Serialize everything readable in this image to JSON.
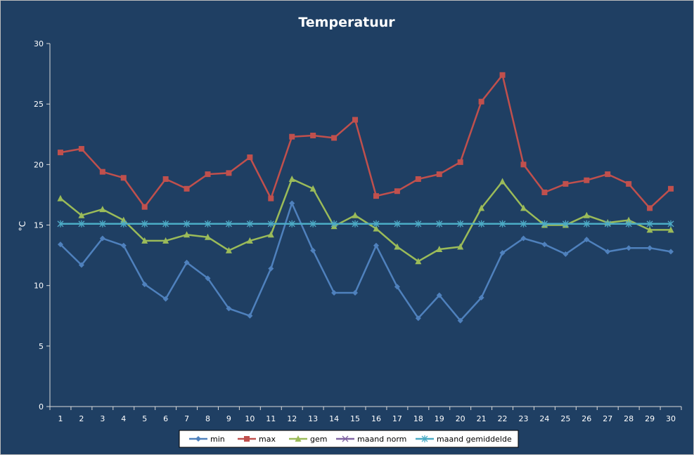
{
  "chart_data": {
    "type": "line",
    "title": "Temperatuur",
    "ylabel": "°C",
    "xlabel": "",
    "ylim": [
      0,
      30
    ],
    "yticks": [
      0,
      5,
      10,
      15,
      20,
      25,
      30
    ],
    "x": [
      1,
      2,
      3,
      4,
      5,
      6,
      7,
      8,
      9,
      10,
      11,
      12,
      13,
      14,
      15,
      16,
      17,
      18,
      19,
      20,
      21,
      22,
      23,
      24,
      25,
      26,
      27,
      28,
      29,
      30
    ],
    "grid": false,
    "legend_position": "bottom",
    "series": [
      {
        "name": "min",
        "color": "#4f81bd",
        "marker": "diamond",
        "values": [
          13.4,
          11.7,
          13.9,
          13.3,
          10.1,
          8.9,
          11.9,
          10.6,
          8.1,
          7.5,
          11.4,
          16.8,
          12.9,
          9.4,
          9.4,
          13.3,
          9.9,
          7.3,
          9.2,
          7.1,
          9.0,
          12.7,
          13.9,
          13.4,
          12.6,
          13.8,
          12.8,
          13.1,
          13.1,
          12.8
        ]
      },
      {
        "name": "max",
        "color": "#c0504d",
        "marker": "square",
        "values": [
          21.0,
          21.3,
          19.4,
          18.9,
          16.5,
          18.8,
          18.0,
          19.2,
          19.3,
          20.6,
          17.2,
          22.3,
          22.4,
          22.2,
          23.7,
          17.4,
          17.8,
          18.8,
          19.2,
          20.2,
          25.2,
          27.4,
          20.0,
          17.7,
          18.4,
          18.7,
          19.2,
          18.4,
          16.4,
          18.0
        ]
      },
      {
        "name": "gem",
        "color": "#9bbb59",
        "marker": "triangle",
        "values": [
          17.2,
          15.8,
          16.3,
          15.4,
          13.7,
          13.7,
          14.2,
          14.0,
          12.9,
          13.7,
          14.2,
          18.8,
          18.0,
          14.9,
          15.8,
          14.7,
          13.2,
          12.0,
          13.0,
          13.2,
          16.4,
          18.6,
          16.4,
          15.0,
          15.0,
          15.8,
          15.2,
          15.4,
          14.6,
          14.6
        ]
      },
      {
        "name": "maand norm",
        "color": "#8064a2",
        "marker": "x",
        "values": [
          15.1,
          15.1,
          15.1,
          15.1,
          15.1,
          15.1,
          15.1,
          15.1,
          15.1,
          15.1,
          15.1,
          15.1,
          15.1,
          15.1,
          15.1,
          15.1,
          15.1,
          15.1,
          15.1,
          15.1,
          15.1,
          15.1,
          15.1,
          15.1,
          15.1,
          15.1,
          15.1,
          15.1,
          15.1,
          15.1
        ]
      },
      {
        "name": "maand gemiddelde",
        "color": "#4bacc6",
        "marker": "star",
        "values": [
          15.1,
          15.1,
          15.1,
          15.1,
          15.1,
          15.1,
          15.1,
          15.1,
          15.1,
          15.1,
          15.1,
          15.1,
          15.1,
          15.1,
          15.1,
          15.1,
          15.1,
          15.1,
          15.1,
          15.1,
          15.1,
          15.1,
          15.1,
          15.1,
          15.1,
          15.1,
          15.1,
          15.1,
          15.1,
          15.1
        ]
      }
    ]
  }
}
